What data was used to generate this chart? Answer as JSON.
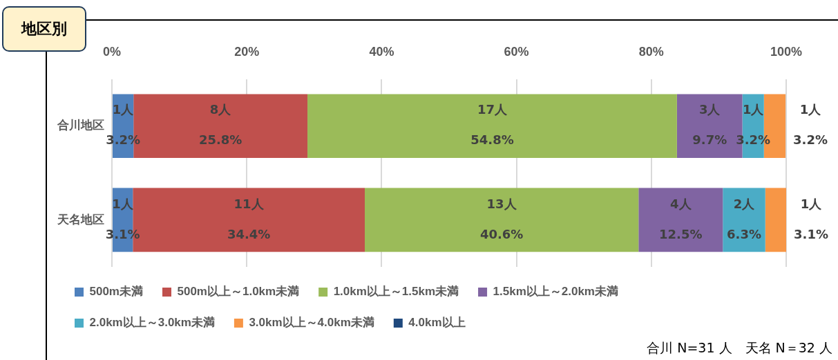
{
  "chart_data": {
    "type": "bar",
    "orientation": "horizontal",
    "stacked": true,
    "title": "地区別",
    "categories": [
      "合川地区",
      "天名地区"
    ],
    "series": [
      {
        "name": "500m未満",
        "color": "#4f81bd",
        "values": [
          3.2,
          3.1
        ],
        "value_labels": [
          "1人\n3.2%",
          "1人\n3.1%"
        ]
      },
      {
        "name": "500m以上～1.0km未満",
        "color": "#c0504d",
        "values": [
          25.8,
          34.4
        ],
        "value_labels": [
          "8人\n25.8%",
          "11人\n34.4%"
        ]
      },
      {
        "name": "1.0km以上～1.5km未満",
        "color": "#9bbb59",
        "values": [
          54.8,
          40.6
        ],
        "value_labels": [
          "17人\n54.8%",
          "13人\n40.6%"
        ]
      },
      {
        "name": "1.5km以上～2.0km未満",
        "color": "#8064a2",
        "values": [
          9.7,
          12.5
        ],
        "value_labels": [
          "3人\n9.7%",
          "4人\n12.5%"
        ]
      },
      {
        "name": "2.0km以上～3.0km未満",
        "color": "#4bacc6",
        "values": [
          3.2,
          6.3
        ],
        "value_labels": [
          "1人\n3.2%",
          "2人\n6.3%"
        ]
      },
      {
        "name": "3.0km以上～4.0km未満",
        "color": "#f79646",
        "values": [
          3.2,
          3.1
        ],
        "value_labels": [
          "1人\n3.2%",
          "1人\n3.1%"
        ]
      },
      {
        "name": "4.0km以上",
        "color": "#1f497d",
        "values": [
          0,
          0
        ],
        "value_labels": [
          null,
          null
        ]
      }
    ],
    "xlim": [
      0,
      100
    ],
    "xticks": [
      {
        "value": 0,
        "label": "0%"
      },
      {
        "value": 20,
        "label": "20%"
      },
      {
        "value": 40,
        "label": "40%"
      },
      {
        "value": 60,
        "label": "60%"
      },
      {
        "value": 80,
        "label": "80%"
      },
      {
        "value": 100,
        "label": "100%"
      }
    ],
    "grid": "x",
    "legend": "bottom",
    "annotations": [
      "合川 N=31 人　天名 N＝32 人"
    ]
  }
}
